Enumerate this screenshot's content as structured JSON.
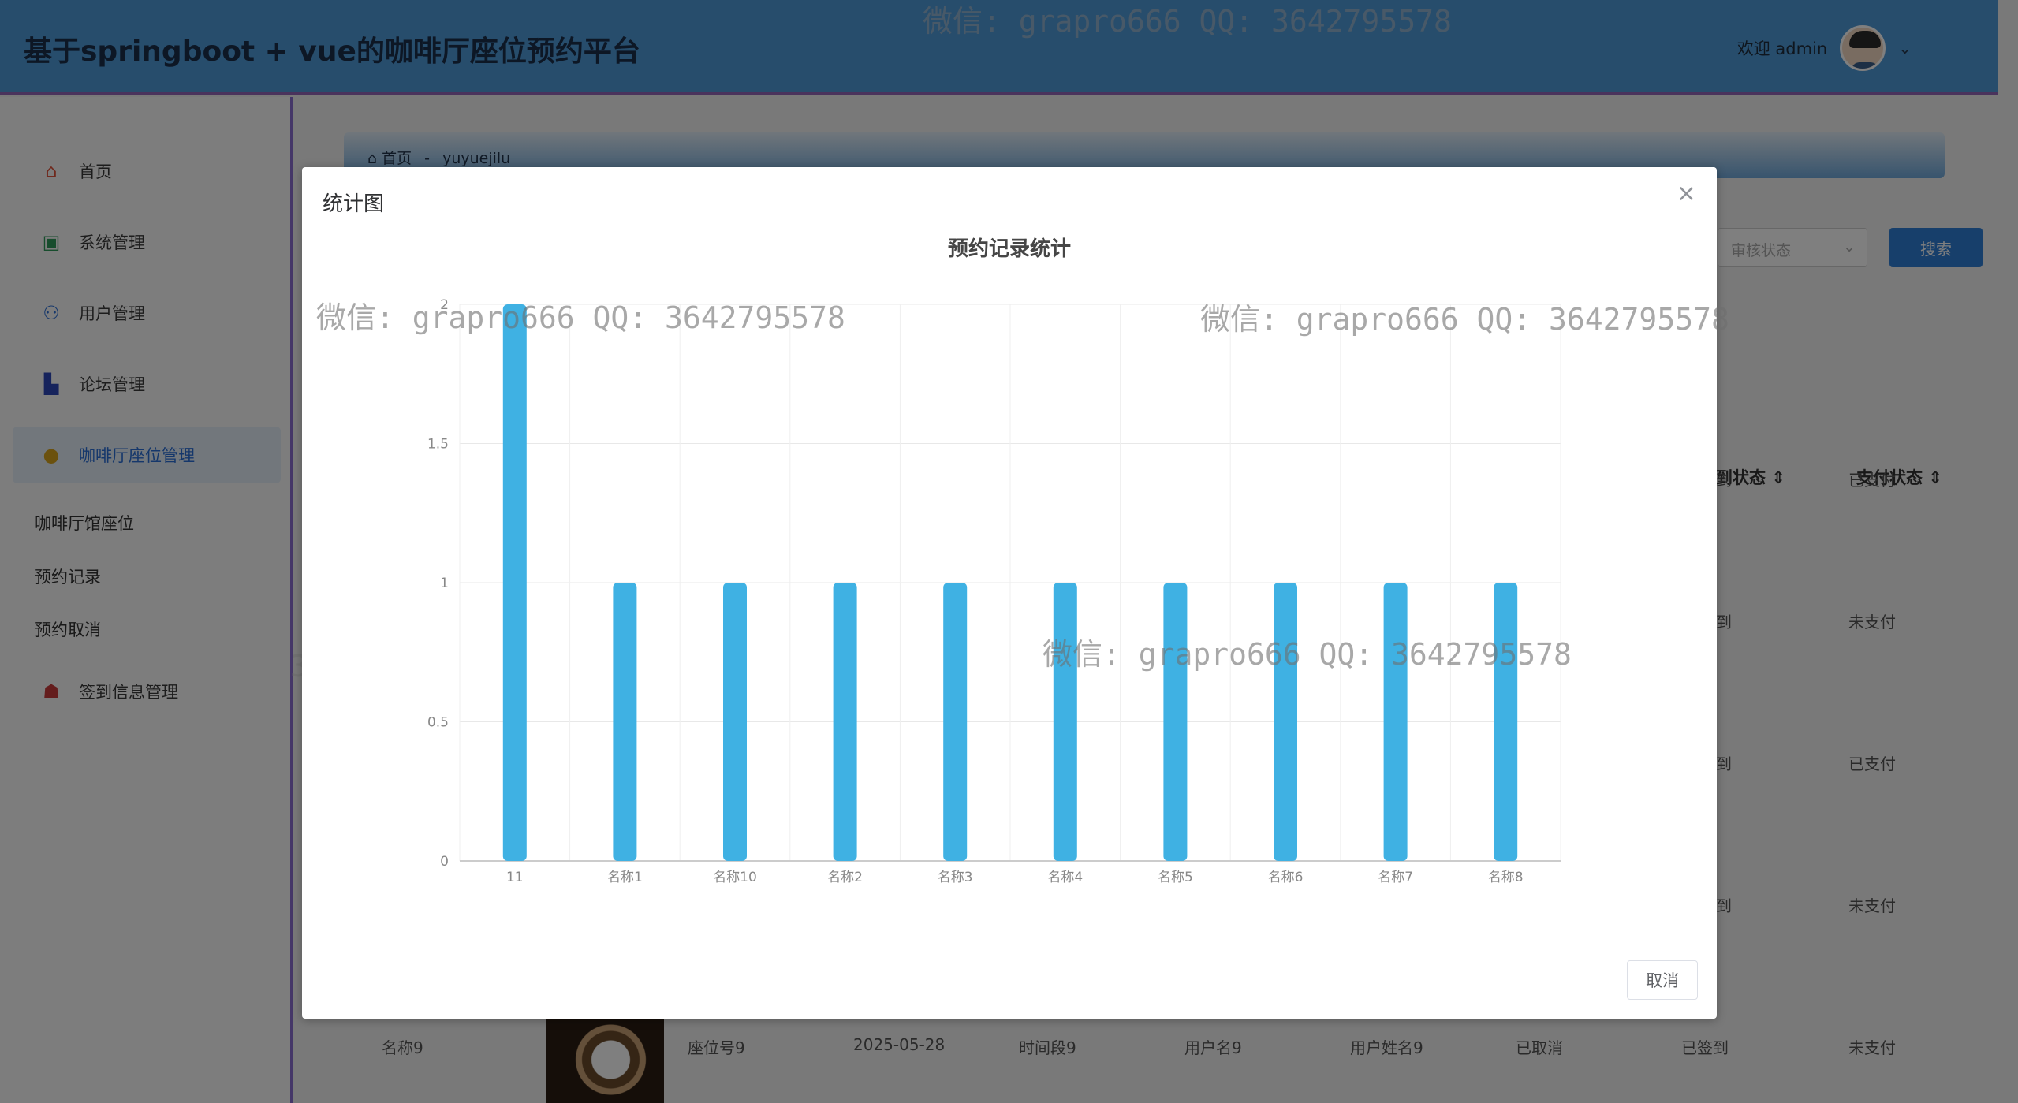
{
  "app": {
    "title": "基于springboot + vue的咖啡厅座位预约平台",
    "welcome": "欢迎 admin"
  },
  "sidebar": {
    "items": [
      {
        "label": "首页",
        "icon": "home-icon",
        "color": "#e0533a"
      },
      {
        "label": "系统管理",
        "icon": "settings-panel-icon",
        "color": "#2f9a5a"
      },
      {
        "label": "用户管理",
        "icon": "user-icon",
        "color": "#2b6fd6"
      },
      {
        "label": "论坛管理",
        "icon": "forum-icon",
        "color": "#2c47b8"
      },
      {
        "label": "咖啡厅座位管理",
        "icon": "coffee-seat-icon",
        "color": "#d6a21c"
      },
      {
        "label": "签到信息管理",
        "icon": "checkin-icon",
        "color": "#c83b3b"
      }
    ],
    "sub_items": [
      "咖啡厅馆座位",
      "预约记录",
      "预约取消"
    ]
  },
  "breadcrumb": {
    "home": "首页",
    "separator": "-",
    "current": "yuyuejilu"
  },
  "search": {
    "select_placeholder": "审核状态",
    "button": "搜索"
  },
  "table": {
    "headers": [
      "到状态",
      "支付状态"
    ],
    "pay_status_column": [
      "已支付",
      "未支付",
      "已支付",
      "未支付",
      "未支付"
    ],
    "sign_partial_column": [
      "到",
      "到",
      "到",
      "到"
    ],
    "last_row": {
      "name": "名称9",
      "seat": "座位号9",
      "date": "2025-05-28",
      "period": "时间段9",
      "username": "用户名9",
      "realname": "用户姓名9",
      "cancel": "已取消",
      "sign": "已签到",
      "pay": "未支付"
    }
  },
  "dialog": {
    "title": "统计图",
    "close": "×",
    "cancel": "取消"
  },
  "watermark": "微信: grapro666 QQ: 3642795578",
  "watermark_partial": "3642795578",
  "chart_data": {
    "type": "bar",
    "title": "预约记录统计",
    "categories": [
      "11",
      "名称1",
      "名称10",
      "名称2",
      "名称3",
      "名称4",
      "名称5",
      "名称6",
      "名称7",
      "名称8"
    ],
    "values": [
      2,
      1,
      1,
      1,
      1,
      1,
      1,
      1,
      1,
      1
    ],
    "ylim": [
      0,
      2
    ],
    "yticks": [
      "0",
      "0.5",
      "1",
      "1.5",
      "2"
    ],
    "ytick_values": [
      0,
      0.5,
      1,
      1.5,
      2
    ],
    "bar_color": "#3fb1e3",
    "grid": true
  }
}
